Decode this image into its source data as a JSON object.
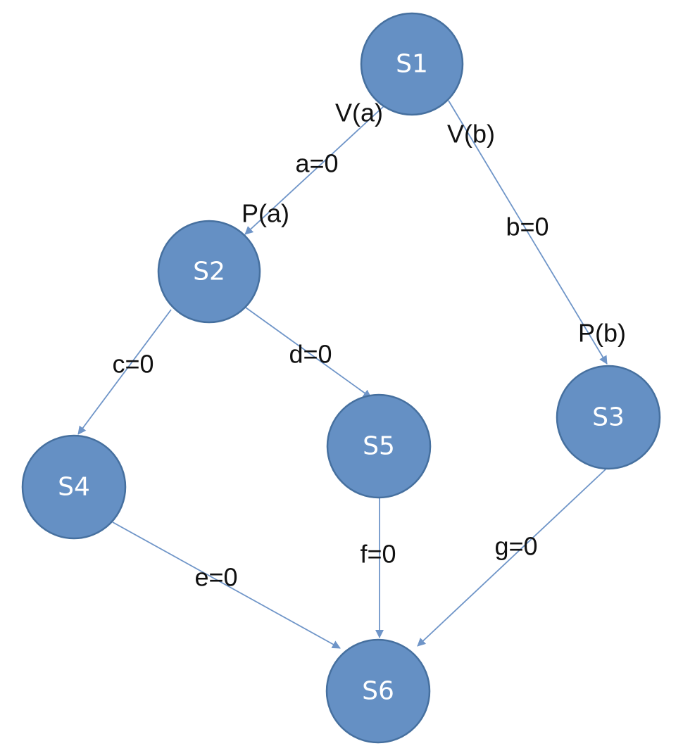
{
  "nodes": [
    {
      "id": "S1",
      "label": "S1"
    },
    {
      "id": "S2",
      "label": "S2"
    },
    {
      "id": "S3",
      "label": "S3"
    },
    {
      "id": "S4",
      "label": "S4"
    },
    {
      "id": "S5",
      "label": "S5"
    },
    {
      "id": "S6",
      "label": "S6"
    }
  ],
  "edges": [
    {
      "id": "s1-s2",
      "from": "S1",
      "to": "S2",
      "labels": [
        "V(a)",
        "a=0",
        "P(a)"
      ]
    },
    {
      "id": "s1-s3",
      "from": "S1",
      "to": "S3",
      "labels": [
        "V(b)",
        "b=0",
        "P(b)"
      ]
    },
    {
      "id": "s2-s4",
      "from": "S2",
      "to": "S4",
      "labels": [
        "c=0"
      ]
    },
    {
      "id": "s2-s5",
      "from": "S2",
      "to": "S5",
      "labels": [
        "d=0"
      ]
    },
    {
      "id": "s4-s6",
      "from": "S4",
      "to": "S6",
      "labels": [
        "e=0"
      ]
    },
    {
      "id": "s5-s6",
      "from": "S5",
      "to": "S6",
      "labels": [
        "f=0"
      ]
    },
    {
      "id": "s3-s6",
      "from": "S3",
      "to": "S6",
      "labels": [
        "g=0"
      ]
    }
  ],
  "colors": {
    "node_fill": "#6590c4",
    "node_stroke": "#46709f",
    "edge": "#6f95c8",
    "text": "#111111"
  }
}
